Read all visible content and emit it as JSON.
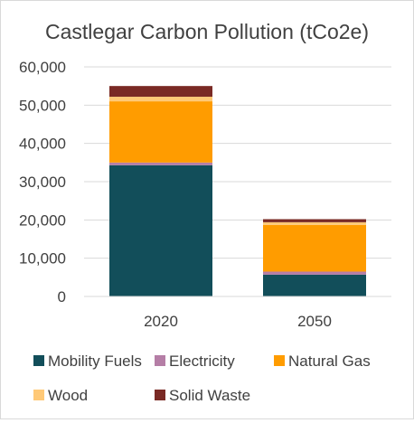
{
  "chart_data": {
    "type": "bar",
    "stacked": true,
    "title": "Castlegar Carbon Pollution (tCo2e)",
    "xlabel": "",
    "ylabel": "",
    "categories": [
      "2020",
      "2050"
    ],
    "ylim": [
      0,
      60000
    ],
    "yticks": [
      0,
      10000,
      20000,
      30000,
      40000,
      50000,
      60000
    ],
    "ytick_labels": [
      "0",
      "10,000",
      "20,000",
      "30,000",
      "40,000",
      "50,000",
      "60,000"
    ],
    "grid": true,
    "legend_position": "bottom",
    "series": [
      {
        "name": "Mobility Fuels",
        "color": "#124e5a",
        "values": [
          34300,
          5700
        ]
      },
      {
        "name": "Electricity",
        "color": "#b57ea6",
        "values": [
          700,
          800
        ]
      },
      {
        "name": "Natural Gas",
        "color": "#ff9c00",
        "values": [
          16000,
          12200
        ]
      },
      {
        "name": "Wood",
        "color": "#ffc977",
        "values": [
          1200,
          700
        ]
      },
      {
        "name": "Solid Waste",
        "color": "#7a2a25",
        "values": [
          2800,
          800
        ]
      }
    ]
  }
}
